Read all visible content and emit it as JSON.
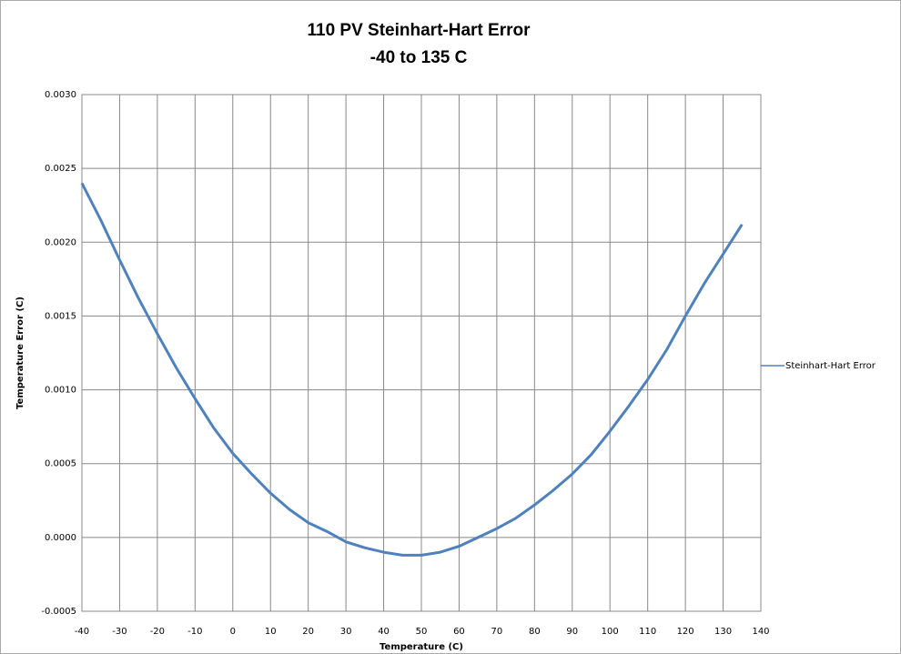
{
  "chart_data": {
    "type": "line",
    "title": "110 PV Steinhart-Hart Error",
    "subtitle": "-40 to 135 C",
    "xlabel": "Temperature (C)",
    "ylabel": "Temperature Error (C)",
    "x": [
      -40,
      -35,
      -30,
      -25,
      -20,
      -15,
      -10,
      -5,
      0,
      5,
      10,
      15,
      20,
      25,
      30,
      35,
      40,
      45,
      50,
      55,
      60,
      65,
      70,
      75,
      80,
      85,
      90,
      95,
      100,
      105,
      110,
      115,
      120,
      125,
      130,
      135
    ],
    "series": [
      {
        "name": "Steinhart-Hart Error",
        "color": "#4f81bd",
        "values": [
          0.0024,
          0.00215,
          0.00188,
          0.00162,
          0.00138,
          0.00115,
          0.00094,
          0.00074,
          0.00057,
          0.00043,
          0.0003,
          0.00019,
          0.0001,
          4e-05,
          -3e-05,
          -7e-05,
          -0.0001,
          -0.00012,
          -0.00012,
          -0.0001,
          -6e-05,
          0,
          6e-05,
          0.00013,
          0.00022,
          0.00032,
          0.00043,
          0.00056,
          0.00072,
          0.00089,
          0.00107,
          0.00127,
          0.0015,
          0.00172,
          0.00192,
          0.00212
        ]
      }
    ],
    "xlim": [
      -40,
      140
    ],
    "xticks": [
      -40,
      -30,
      -20,
      -10,
      0,
      10,
      20,
      30,
      40,
      50,
      60,
      70,
      80,
      90,
      100,
      110,
      120,
      130,
      140
    ],
    "ylim": [
      -0.0005,
      0.003
    ],
    "yticks": [
      {
        "value": -0.0005,
        "label": "-0.0005"
      },
      {
        "value": 0,
        "label": "0.0000"
      },
      {
        "value": 0.0005,
        "label": "0.0005"
      },
      {
        "value": 0.001,
        "label": "0.0010"
      },
      {
        "value": 0.0015,
        "label": "0.0015"
      },
      {
        "value": 0.002,
        "label": "0.0020"
      },
      {
        "value": 0.0025,
        "label": "0.0025"
      },
      {
        "value": 0.003,
        "label": "0.0030"
      }
    ],
    "grid": true,
    "legend": "right"
  }
}
